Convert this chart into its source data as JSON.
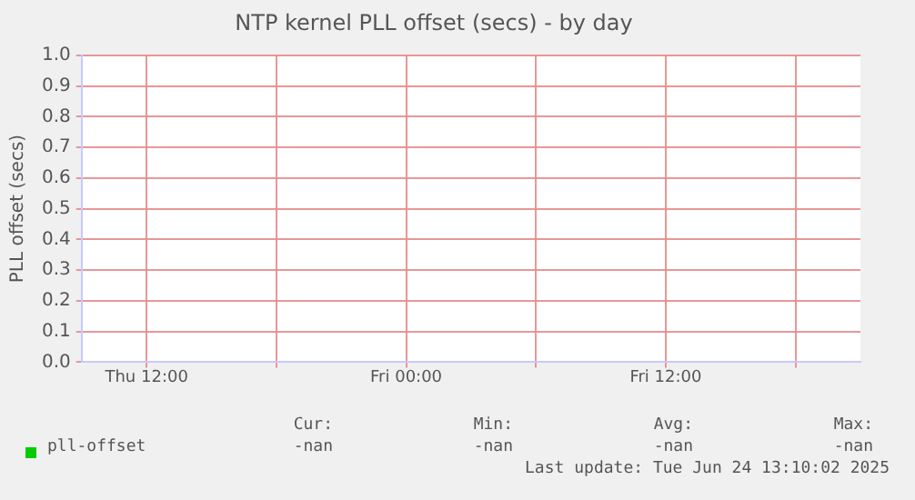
{
  "chart_data": {
    "type": "line",
    "title": "NTP kernel PLL offset (secs) - by day",
    "ylabel": "PLL offset (secs)",
    "categories": [
      "Thu 12:00",
      null,
      "Fri 00:00",
      null,
      "Fri 12:00",
      null
    ],
    "series": [
      {
        "name": "pll-offset",
        "color": "#00cc00",
        "values": [
          null,
          null,
          null,
          null,
          null,
          null
        ]
      }
    ],
    "ylim": [
      0,
      1
    ],
    "yticks": [
      {
        "value": 0,
        "label": "0.0"
      },
      {
        "value": 0.1,
        "label": "0.1"
      },
      {
        "value": 0.2,
        "label": "0.2"
      },
      {
        "value": 0.3,
        "label": "0.3"
      },
      {
        "value": 0.4,
        "label": "0.4"
      },
      {
        "value": 0.5,
        "label": "0.5"
      },
      {
        "value": 0.6,
        "label": "0.6"
      },
      {
        "value": 0.7,
        "label": "0.7"
      },
      {
        "value": 0.8,
        "label": "0.8"
      },
      {
        "value": 0.9,
        "label": "0.9"
      },
      {
        "value": 1,
        "label": "1.0"
      }
    ],
    "grid": true,
    "legend": "bottom left",
    "annotations": [
      "Cur:",
      "Min:",
      "Avg:",
      "Max:",
      "-nan",
      "-nan",
      "-nan",
      "-nan",
      "Last update: Tue Jun 24 13:10:02 2025"
    ]
  }
}
